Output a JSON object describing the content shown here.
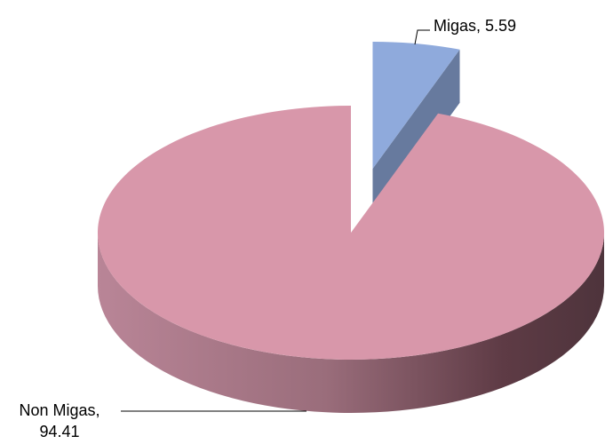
{
  "chart_data": {
    "type": "pie3d",
    "categories": [
      "Migas",
      "Non Migas"
    ],
    "values": [
      5.59,
      94.41
    ],
    "value_labels": [
      "Migas, 5.59",
      "Non Migas, 94.41"
    ],
    "colors": [
      "#8faadc",
      "#d897aa"
    ],
    "explode": [
      true,
      false
    ]
  }
}
